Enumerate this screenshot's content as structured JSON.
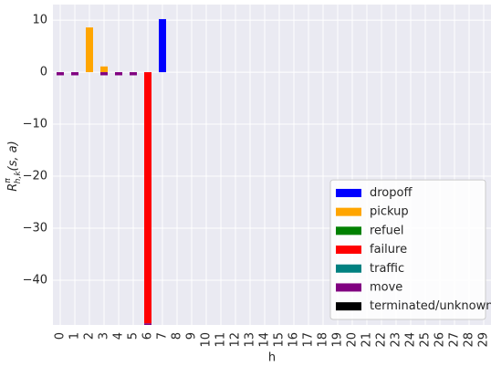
{
  "chart_data": {
    "type": "stacked_bar",
    "y_label": {
      "base": "R",
      "sup": "π",
      "sub": "h,k",
      "args": "(s, a)"
    },
    "x_label": "h",
    "categories": [
      "0",
      "1",
      "2",
      "3",
      "4",
      "5",
      "6",
      "7",
      "8",
      "9",
      "10",
      "11",
      "12",
      "13",
      "14",
      "15",
      "16",
      "17",
      "18",
      "19",
      "20",
      "21",
      "22",
      "23",
      "24",
      "25",
      "26",
      "27",
      "28",
      "29"
    ],
    "series": [
      {
        "name": "dropoff",
        "color": "#0000ff",
        "values": [
          null,
          null,
          null,
          null,
          null,
          null,
          null,
          10.2,
          null,
          null,
          null,
          null,
          null,
          null,
          null,
          null,
          null,
          null,
          null,
          null,
          null,
          null,
          null,
          null,
          null,
          null,
          null,
          null,
          null,
          null
        ]
      },
      {
        "name": "pickup",
        "color": "#ffa500",
        "values": [
          null,
          null,
          8.6,
          1.1,
          null,
          null,
          null,
          null,
          null,
          null,
          null,
          null,
          null,
          null,
          null,
          null,
          null,
          null,
          null,
          null,
          null,
          null,
          null,
          null,
          null,
          null,
          null,
          null,
          null,
          null
        ]
      },
      {
        "name": "refuel",
        "color": "#008000",
        "values": [
          null,
          null,
          null,
          null,
          null,
          null,
          null,
          null,
          null,
          null,
          null,
          null,
          null,
          null,
          null,
          null,
          null,
          null,
          null,
          null,
          null,
          null,
          null,
          null,
          null,
          null,
          null,
          null,
          null,
          null
        ]
      },
      {
        "name": "failure",
        "color": "#ff0000",
        "values": [
          null,
          null,
          null,
          null,
          null,
          null,
          -48.3,
          null,
          null,
          null,
          null,
          null,
          null,
          null,
          null,
          null,
          null,
          null,
          null,
          null,
          null,
          null,
          null,
          null,
          null,
          null,
          null,
          null,
          null,
          null
        ]
      },
      {
        "name": "traffic",
        "color": "#008080",
        "values": [
          null,
          null,
          null,
          null,
          null,
          null,
          null,
          null,
          null,
          null,
          null,
          null,
          null,
          null,
          null,
          null,
          null,
          null,
          null,
          null,
          null,
          null,
          null,
          null,
          null,
          null,
          null,
          null,
          null,
          null
        ]
      },
      {
        "name": "move",
        "color": "#800080",
        "values": [
          -0.6,
          -0.6,
          null,
          -0.6,
          -0.6,
          -0.6,
          -0.3,
          null,
          null,
          null,
          null,
          null,
          null,
          null,
          null,
          null,
          null,
          null,
          null,
          null,
          null,
          null,
          null,
          null,
          null,
          null,
          null,
          null,
          null,
          null
        ]
      },
      {
        "name": "terminated/unknown",
        "color": "#000000",
        "values": [
          null,
          null,
          null,
          null,
          null,
          null,
          null,
          null,
          null,
          null,
          null,
          null,
          null,
          null,
          null,
          null,
          null,
          null,
          null,
          null,
          null,
          null,
          null,
          null,
          null,
          null,
          null,
          null,
          null,
          null
        ]
      }
    ],
    "ylim": [
      -48.6,
      13
    ],
    "yticks": [
      {
        "value": -40,
        "label": "−40"
      },
      {
        "value": -30,
        "label": "−30"
      },
      {
        "value": -20,
        "label": "−20"
      },
      {
        "value": -10,
        "label": "−10"
      },
      0,
      10
    ],
    "grid": true,
    "legend": "lower right"
  }
}
